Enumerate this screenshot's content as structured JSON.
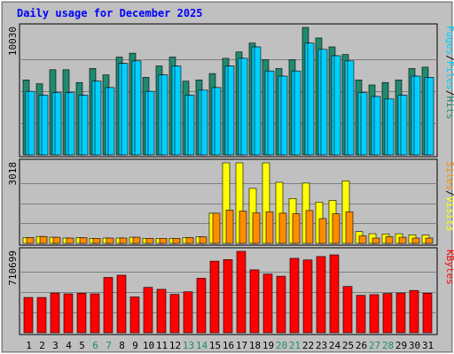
{
  "title": "Daily usage for December 2025",
  "colors": {
    "background": "#c0c0c0",
    "panel": "#c0c0c0",
    "gridline": "#808080",
    "title": "#0000ff",
    "hits": "#1f8a70",
    "files": "#00d0ff",
    "pages": "#00d0ff",
    "visits": "#ffff00",
    "sites": "#ff8c00",
    "kbytes": "#ff0000",
    "weekend": "#1f8a70",
    "weekday": "#000000",
    "sep": "#000000"
  },
  "chart_data": [
    {
      "type": "bar",
      "name": "hits-files-pages",
      "max_label": "10030",
      "ymax": 10030,
      "legend": [
        "Pages",
        "/",
        "Files",
        "/",
        "Hits"
      ],
      "x": [
        1,
        2,
        3,
        4,
        5,
        6,
        7,
        8,
        9,
        10,
        11,
        12,
        13,
        14,
        15,
        16,
        17,
        18,
        19,
        20,
        21,
        22,
        23,
        24,
        25,
        26,
        27,
        28,
        29,
        30,
        31
      ],
      "series": [
        {
          "name": "Hits",
          "values": [
            5900,
            5600,
            6700,
            6700,
            5700,
            6800,
            6300,
            7700,
            8000,
            6100,
            7000,
            7700,
            5800,
            5900,
            6400,
            7600,
            8100,
            8800,
            7500,
            6800,
            7500,
            10030,
            9200,
            8500,
            7900,
            5900,
            5500,
            5700,
            5900,
            6800,
            6900
          ]
        },
        {
          "name": "Files",
          "values": [
            5000,
            4700,
            4900,
            4900,
            4700,
            5800,
            5300,
            7200,
            7400,
            5000,
            6300,
            7000,
            4700,
            5100,
            5300,
            7000,
            7600,
            8500,
            6600,
            6200,
            6600,
            8800,
            8300,
            7800,
            7400,
            4900,
            4600,
            4400,
            4700,
            6200,
            6100
          ]
        },
        {
          "name": "Pages",
          "values": [
            5000,
            4700,
            4900,
            4900,
            4700,
            5800,
            5300,
            7200,
            7400,
            5000,
            6300,
            7000,
            4700,
            5100,
            5300,
            7000,
            7600,
            8500,
            6600,
            6200,
            6600,
            8800,
            8300,
            7800,
            7400,
            4900,
            4600,
            4400,
            4700,
            6200,
            6100
          ]
        }
      ]
    },
    {
      "type": "bar",
      "name": "visits-sites",
      "max_label": "3018",
      "ymax": 3018,
      "legend": [
        "Sites",
        "/",
        "Visits"
      ],
      "x": [
        1,
        2,
        3,
        4,
        5,
        6,
        7,
        8,
        9,
        10,
        11,
        12,
        13,
        14,
        15,
        16,
        17,
        18,
        19,
        20,
        21,
        22,
        23,
        24,
        25,
        26,
        27,
        28,
        29,
        30,
        31
      ],
      "series": [
        {
          "name": "Visits",
          "values": [
            220,
            260,
            230,
            200,
            220,
            190,
            200,
            200,
            230,
            190,
            190,
            190,
            220,
            250,
            1130,
            3018,
            3018,
            2060,
            3018,
            2290,
            1680,
            2260,
            1550,
            1610,
            2340,
            440,
            360,
            350,
            360,
            320,
            310
          ]
        },
        {
          "name": "Sites",
          "values": [
            220,
            260,
            230,
            200,
            220,
            190,
            200,
            200,
            230,
            190,
            190,
            190,
            220,
            250,
            1130,
            1250,
            1210,
            1140,
            1180,
            1130,
            1110,
            1230,
            930,
            1110,
            1180,
            280,
            200,
            250,
            230,
            200,
            200
          ]
        }
      ]
    },
    {
      "type": "bar",
      "name": "kbytes",
      "max_label": "710699",
      "ymax": 710699,
      "legend": [
        "KBytes"
      ],
      "x": [
        1,
        2,
        3,
        4,
        5,
        6,
        7,
        8,
        9,
        10,
        11,
        12,
        13,
        14,
        15,
        16,
        17,
        18,
        19,
        20,
        21,
        22,
        23,
        24,
        25,
        26,
        27,
        28,
        29,
        30,
        31
      ],
      "series": [
        {
          "name": "KBytes",
          "values": [
            308000,
            308000,
            347000,
            340000,
            345000,
            340000,
            483000,
            502000,
            313000,
            396000,
            379000,
            335000,
            358000,
            476000,
            625000,
            639000,
            710699,
            549000,
            512000,
            494000,
            650000,
            636000,
            665000,
            680000,
            404000,
            327000,
            333000,
            343000,
            347000,
            369000,
            345000
          ]
        }
      ]
    }
  ],
  "weekend_days": [
    6,
    7,
    13,
    14,
    20,
    21,
    27,
    28
  ]
}
